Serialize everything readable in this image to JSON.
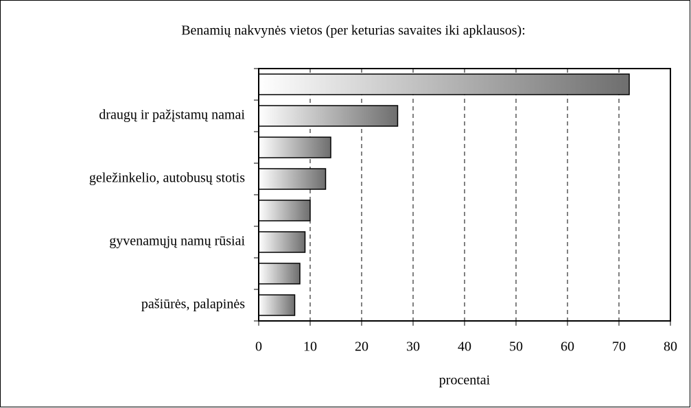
{
  "chart_data": {
    "type": "bar",
    "orientation": "horizontal",
    "title": "Benamių nakvynės vietos (per keturias savaites iki apklausos):",
    "categories": [
      null,
      "draugų ir pažįstamų namai",
      null,
      "geležinkelio, autobusų stotis",
      null,
      "gyvenamųjų namų rūsiai",
      null,
      "pašiūrės, palapinės"
    ],
    "values": [
      72,
      27,
      14,
      13,
      10,
      9,
      8,
      7
    ],
    "color": "#6e6e6e",
    "xlabel": "procentai",
    "xlim": [
      0,
      80
    ],
    "xticks": [
      0,
      10,
      20,
      30,
      40,
      50,
      60,
      70,
      80
    ],
    "grid": true
  }
}
